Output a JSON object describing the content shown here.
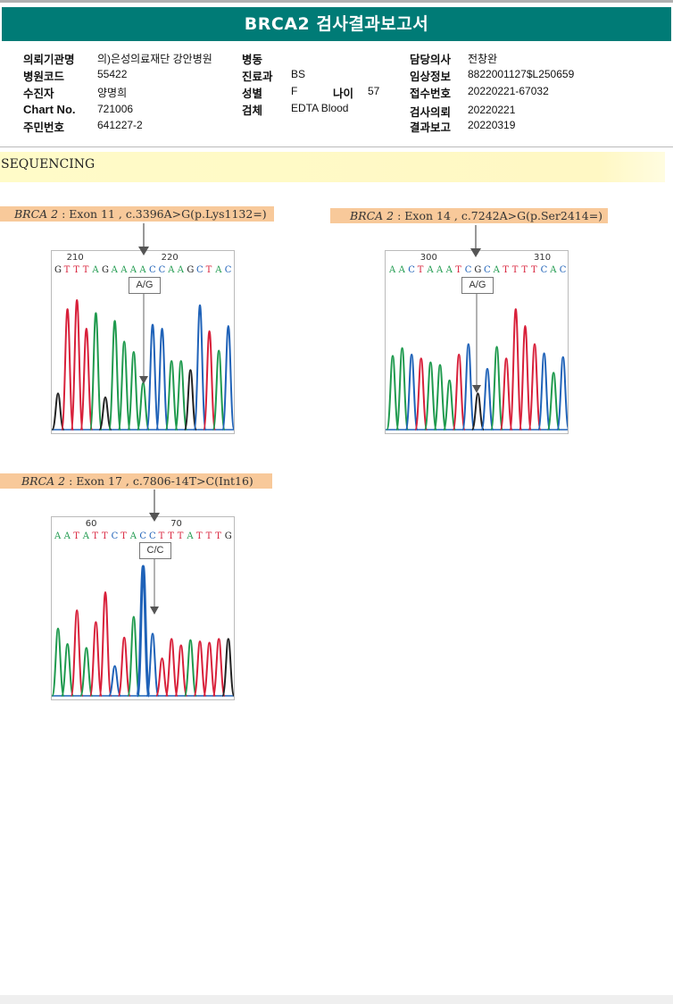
{
  "title": "BRCA2 검사결과보고서",
  "patient_info": {
    "left": [
      {
        "label": "의뢰기관명",
        "value": "의)은성의료재단 강안병원"
      },
      {
        "label": "병원코드",
        "value": "55422"
      },
      {
        "label": "수진자",
        "value": "양명희"
      },
      {
        "label": "Chart No.",
        "value": "721006"
      },
      {
        "label": "주민번호",
        "value": "641227-2"
      }
    ],
    "middle": [
      {
        "label": "병동",
        "value": ""
      },
      {
        "label": "진료과",
        "value": "BS"
      },
      {
        "label": "성별",
        "value": "F"
      },
      {
        "label": "검체",
        "value": "EDTA Blood"
      }
    ],
    "age": {
      "label": "나이",
      "value": "57"
    },
    "right": [
      {
        "label": "담당의사",
        "value": "전창완"
      },
      {
        "label": "임상정보",
        "value": "8822001127$L250659"
      },
      {
        "label": "접수번호",
        "value": "20220221-67032"
      },
      {
        "label": "검사의뢰",
        "value": "20220221"
      },
      {
        "label": "결과보고",
        "value": "20220319"
      }
    ]
  },
  "section_title": "SEQUENCING",
  "colors": {
    "header_bg": "#007b76",
    "A": "#1f9a4e",
    "C": "#1f62b8",
    "G": "#222222",
    "T": "#d8203a",
    "label_bg": "#f8c99a"
  },
  "variants": [
    {
      "gene": "BRCA 2",
      "detail": " : Exon 11 , c.3396A>G(p.Lys1132=)",
      "positions": [
        "210",
        "220"
      ],
      "sequence": "GTTTAGAAAACCAAGCTAC",
      "call": "A/G",
      "peaks": [
        {
          "b": "G",
          "h": 0.28
        },
        {
          "b": "T",
          "h": 0.93
        },
        {
          "b": "T",
          "h": 1.0
        },
        {
          "b": "T",
          "h": 0.78
        },
        {
          "b": "A",
          "h": 0.9
        },
        {
          "b": "G",
          "h": 0.25
        },
        {
          "b": "A",
          "h": 0.84
        },
        {
          "b": "A",
          "h": 0.68
        },
        {
          "b": "A",
          "h": 0.6
        },
        {
          "b": "A",
          "h": 0.36
        },
        {
          "b": "C",
          "h": 0.81
        },
        {
          "b": "C",
          "h": 0.78
        },
        {
          "b": "A",
          "h": 0.53
        },
        {
          "b": "A",
          "h": 0.53
        },
        {
          "b": "G",
          "h": 0.46
        },
        {
          "b": "C",
          "h": 0.96
        },
        {
          "b": "T",
          "h": 0.76
        },
        {
          "b": "A",
          "h": 0.61
        },
        {
          "b": "C",
          "h": 0.8
        }
      ]
    },
    {
      "gene": "BRCA 2",
      "detail": " : Exon 14 , c.7242A>G(p.Ser2414=)",
      "positions": [
        "300",
        "310"
      ],
      "sequence": "AACTAAATCGCATTTTCAC",
      "call": "A/G",
      "peaks": [
        {
          "b": "A",
          "h": 0.57
        },
        {
          "b": "A",
          "h": 0.63
        },
        {
          "b": "C",
          "h": 0.58
        },
        {
          "b": "T",
          "h": 0.55
        },
        {
          "b": "A",
          "h": 0.52
        },
        {
          "b": "A",
          "h": 0.5
        },
        {
          "b": "A",
          "h": 0.38
        },
        {
          "b": "T",
          "h": 0.58
        },
        {
          "b": "C",
          "h": 0.66
        },
        {
          "b": "G",
          "h": 0.28
        },
        {
          "b": "C",
          "h": 0.47
        },
        {
          "b": "A",
          "h": 0.64
        },
        {
          "b": "T",
          "h": 0.55
        },
        {
          "b": "T",
          "h": 0.93
        },
        {
          "b": "T",
          "h": 0.8
        },
        {
          "b": "T",
          "h": 0.66
        },
        {
          "b": "C",
          "h": 0.59
        },
        {
          "b": "A",
          "h": 0.44
        },
        {
          "b": "C",
          "h": 0.56
        }
      ]
    },
    {
      "gene": "BRCA 2",
      "detail": " : Exon 17 , c.7806-14T>C(Int16)",
      "positions": [
        "60",
        "70"
      ],
      "sequence": "AATATTCTACCTTTATTTG",
      "call": "C/C",
      "peaks": [
        {
          "b": "A",
          "h": 0.52
        },
        {
          "b": "A",
          "h": 0.4
        },
        {
          "b": "T",
          "h": 0.66
        },
        {
          "b": "A",
          "h": 0.37
        },
        {
          "b": "T",
          "h": 0.57
        },
        {
          "b": "T",
          "h": 0.8
        },
        {
          "b": "C",
          "h": 0.23
        },
        {
          "b": "T",
          "h": 0.45
        },
        {
          "b": "A",
          "h": 0.61
        },
        {
          "b": "C",
          "h": 1.0
        },
        {
          "b": "C",
          "h": 0.48
        },
        {
          "b": "T",
          "h": 0.29
        },
        {
          "b": "T",
          "h": 0.44
        },
        {
          "b": "T",
          "h": 0.39
        },
        {
          "b": "A",
          "h": 0.43
        },
        {
          "b": "T",
          "h": 0.42
        },
        {
          "b": "T",
          "h": 0.41
        },
        {
          "b": "T",
          "h": 0.44
        },
        {
          "b": "G",
          "h": 0.44
        }
      ]
    }
  ]
}
